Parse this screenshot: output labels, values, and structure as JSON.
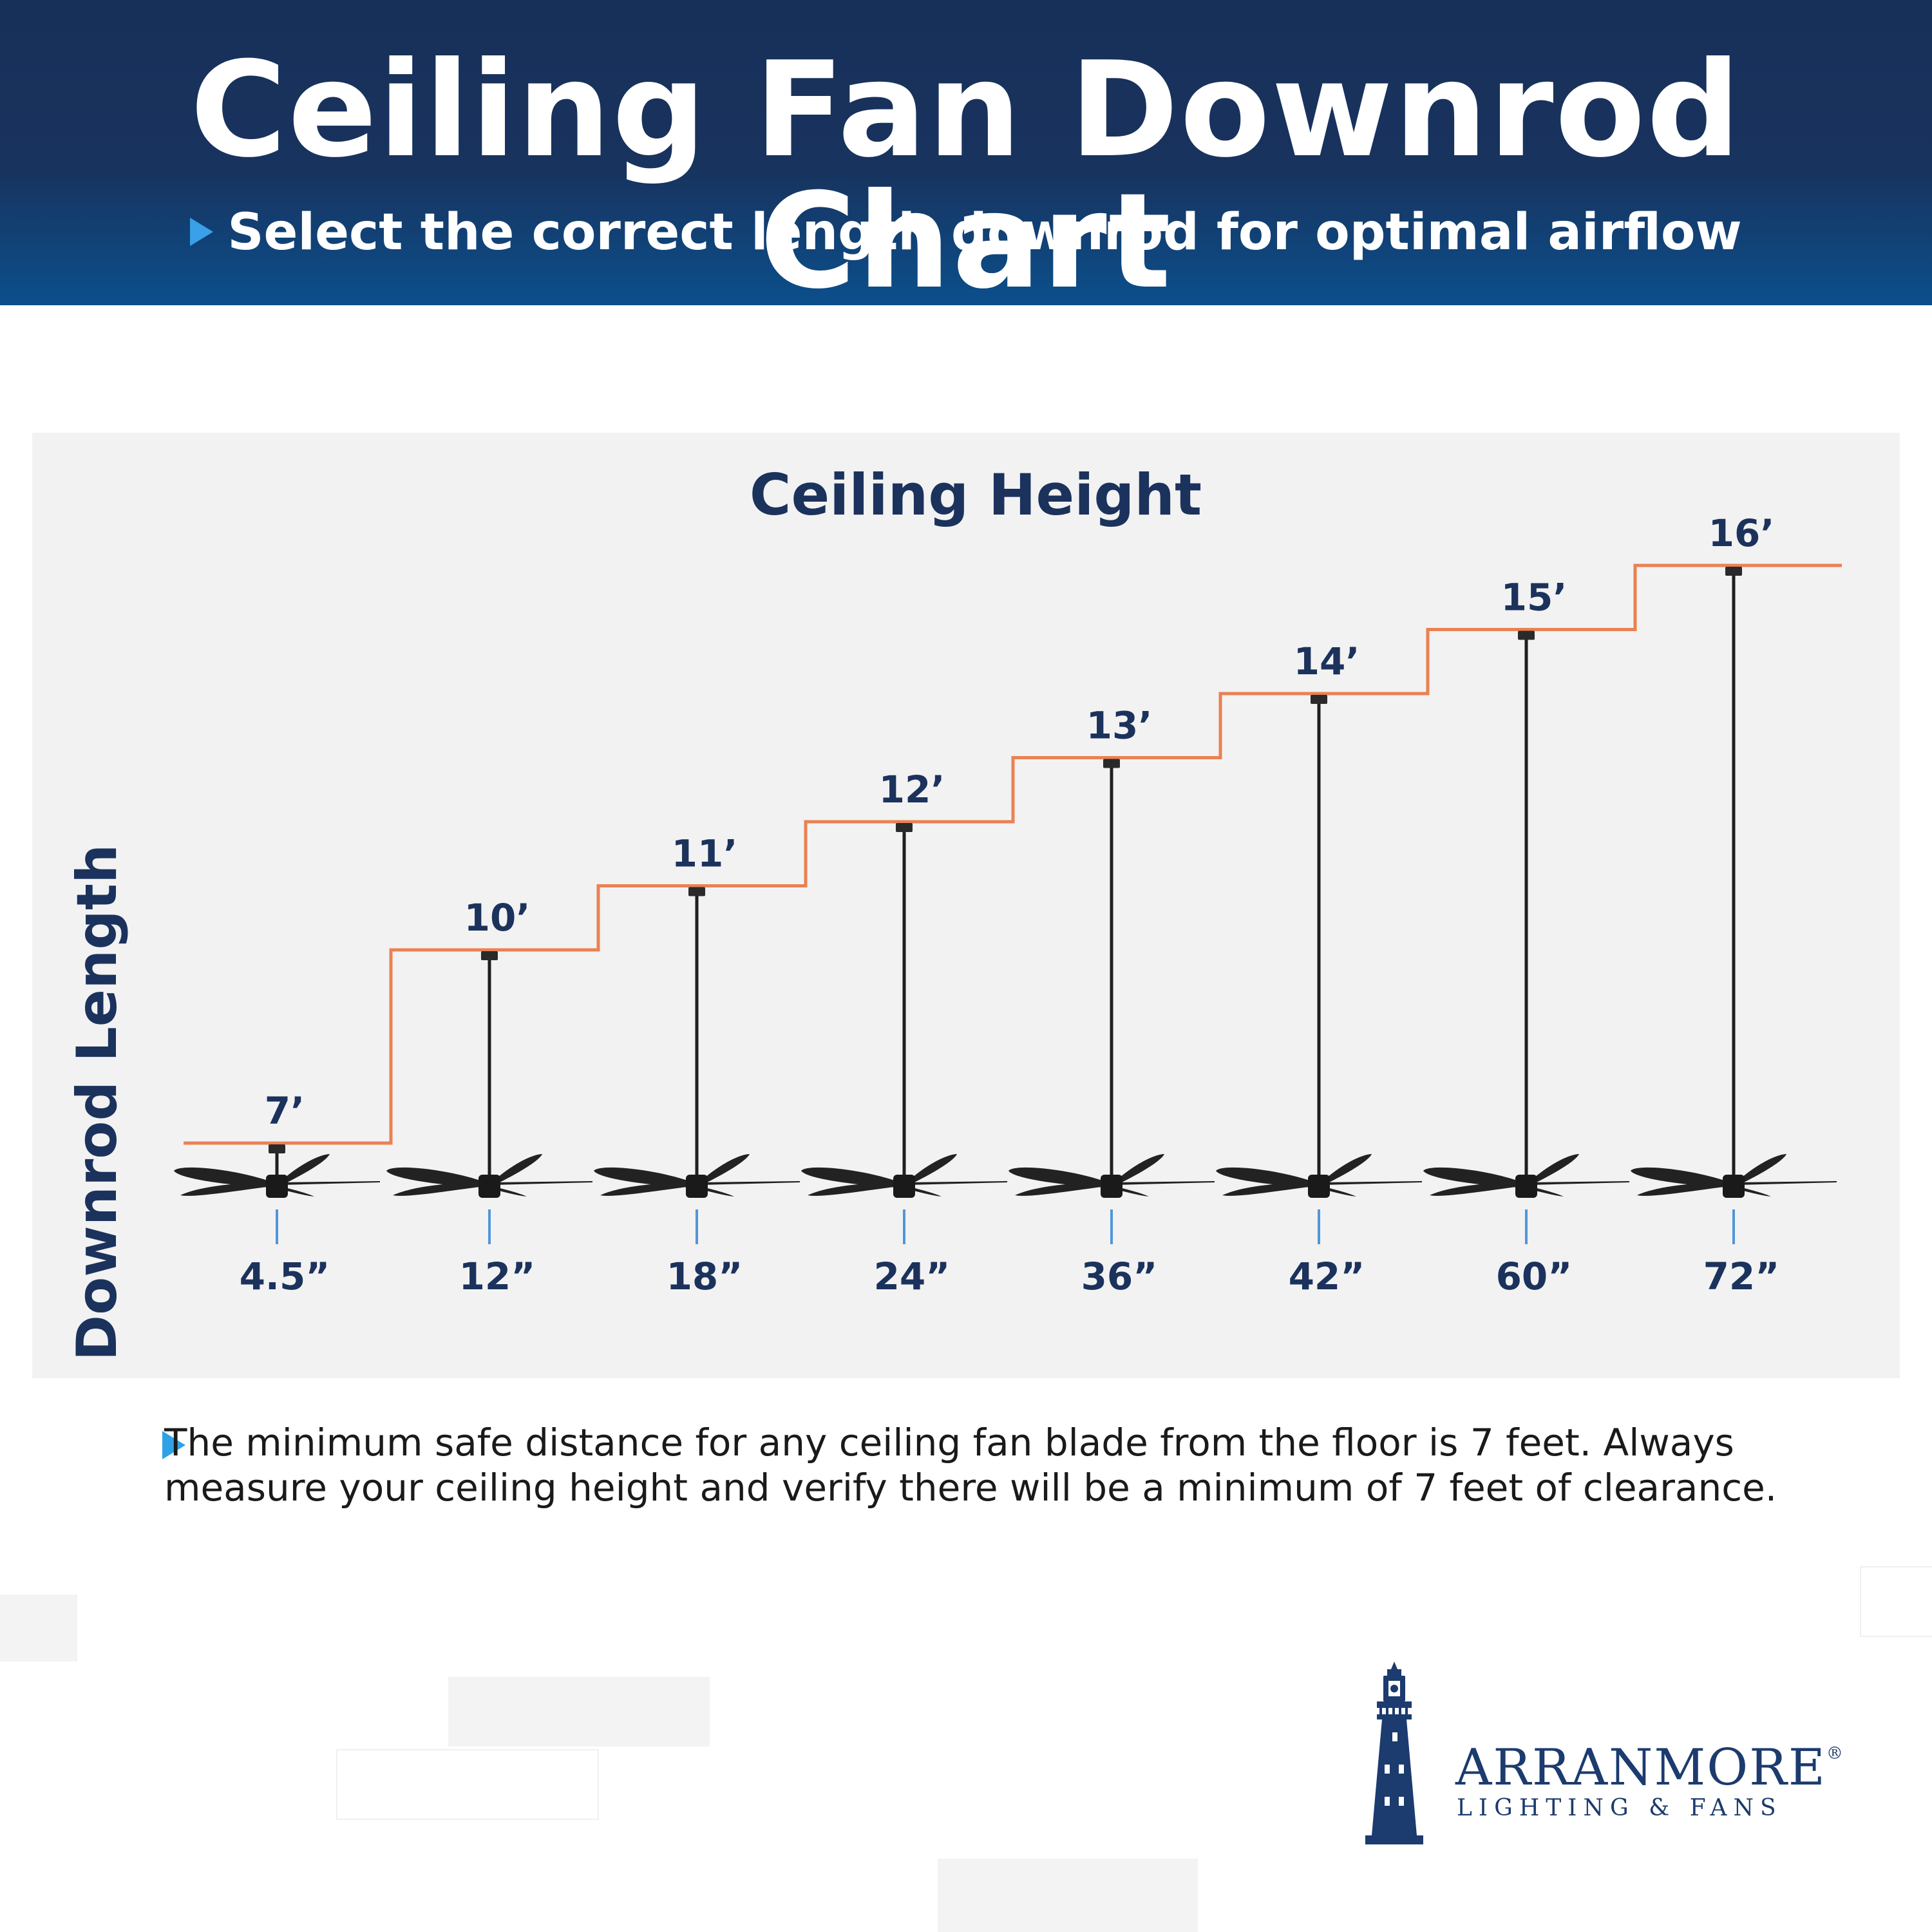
{
  "header": {
    "title": "Ceiling Fan Downrod Chart",
    "subtitle": "Select the correct length downrod for optimal airflow"
  },
  "chart_data": {
    "type": "step-diagram",
    "title": "Ceiling Height",
    "ylabel": "Downrod Length",
    "series": [
      {
        "name": "Ceiling Height",
        "values": [
          "7’",
          "10’",
          "11’",
          "12’",
          "13’",
          "14’",
          "15’",
          "16’"
        ]
      },
      {
        "name": "Downrod Length",
        "values": [
          "4.5”",
          "12”",
          "18”",
          "24”",
          "36”",
          "42”",
          "60”",
          "72”"
        ]
      }
    ],
    "ceiling_height_ft": [
      7,
      10,
      11,
      12,
      13,
      14,
      15,
      16
    ],
    "downrod_length_in": [
      4.5,
      12,
      18,
      24,
      36,
      42,
      60,
      72
    ],
    "colors": {
      "step_line": "#ea8153",
      "marker": "#4f97d8",
      "text": "#1b325c",
      "fan": "#222222"
    }
  },
  "note": {
    "text": "The minimum safe distance for any ceiling fan blade from the floor is 7 feet.  Always measure your ceiling height and verify there will be a minimum of 7 feet of clearance."
  },
  "brand": {
    "name": "ARRANMORE",
    "registered": "®",
    "tagline": "LIGHTING & FANS",
    "icon": "lighthouse-icon",
    "color": "#1c3b6e"
  }
}
